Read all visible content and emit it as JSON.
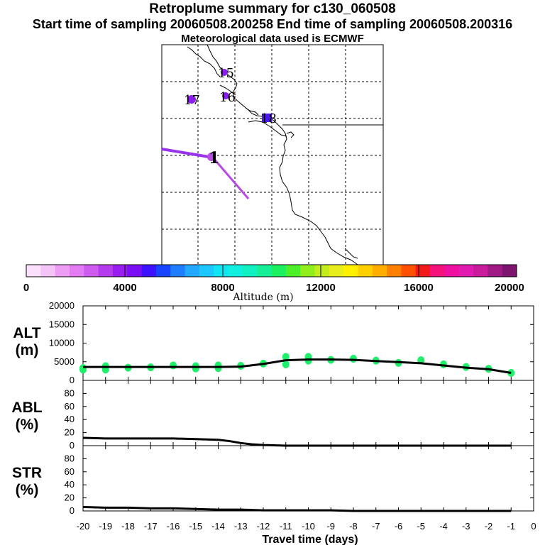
{
  "header": {
    "title": "Retroplume summary for c130_060508",
    "subtitle": "Start time of sampling 20060508.200258     End time of sampling 20060508.200316",
    "met": "Meteorological data used is ECMWF"
  },
  "map": {
    "labels": [
      "15",
      "16",
      "17",
      "18",
      "1"
    ],
    "colors": {
      "trajectory": "#9a33ee",
      "cluster": "#8a1cf0"
    }
  },
  "colorbar": {
    "title": "Altitude (m)",
    "min": 0,
    "max": 20000,
    "tick_labels": [
      "0",
      "4000",
      "8000",
      "12000",
      "16000",
      "20000"
    ],
    "colors": [
      "#fbe0fb",
      "#f5c4f7",
      "#ee9df5",
      "#e37cf2",
      "#cf5cef",
      "#b53cee",
      "#9a1ef2",
      "#7a0ff5",
      "#3c12ff",
      "#1744ff",
      "#1f7eff",
      "#22a8ff",
      "#1cc8ff",
      "#10e6f2",
      "#10efe0",
      "#10f0c0",
      "#15ef98",
      "#1cf060",
      "#4cf02a",
      "#90ee1c",
      "#c2ec1c",
      "#e8ee1c",
      "#fff000",
      "#ffd000",
      "#ffae00",
      "#ff8000",
      "#ff5000",
      "#f41a1a",
      "#f5127a",
      "#ee10a0",
      "#e01cb0",
      "#c81c9c",
      "#a01a86",
      "#7d1470"
    ]
  },
  "chart_data": [
    {
      "type": "scatter",
      "name": "ALT",
      "panel_label": [
        "ALT",
        "(m)"
      ],
      "ylim": [
        0,
        20000
      ],
      "yticks": [
        0,
        5000,
        10000,
        15000,
        20000
      ],
      "xlim": [
        -20,
        0
      ],
      "points": [
        [
          -20,
          3300
        ],
        [
          -20,
          2900
        ],
        [
          -19,
          3800
        ],
        [
          -19,
          2900
        ],
        [
          -18,
          3400
        ],
        [
          -17,
          3500
        ],
        [
          -16,
          4000
        ],
        [
          -15,
          3800
        ],
        [
          -15,
          3200
        ],
        [
          -14,
          4000
        ],
        [
          -14,
          3300
        ],
        [
          -13,
          3900
        ],
        [
          -12,
          4500
        ],
        [
          -11,
          6300
        ],
        [
          -11,
          4300
        ],
        [
          -10,
          6300
        ],
        [
          -10,
          5300
        ],
        [
          -9,
          5500
        ],
        [
          -8,
          5800
        ],
        [
          -7,
          5300
        ],
        [
          -6,
          4700
        ],
        [
          -5,
          5400
        ],
        [
          -4,
          4300
        ],
        [
          -3,
          3600
        ],
        [
          -2,
          3100
        ],
        [
          -1,
          2000
        ]
      ],
      "median_x": [
        -20,
        -19,
        -18,
        -17,
        -16,
        -15,
        -14,
        -13,
        -12,
        -11,
        -10,
        -9,
        -8,
        -7,
        -6,
        -5,
        -4,
        -3,
        -2,
        -1
      ],
      "median_y": [
        3600,
        3600,
        3600,
        3600,
        3600,
        3600,
        3600,
        3700,
        4400,
        5400,
        5600,
        5600,
        5500,
        5200,
        4900,
        4600,
        4000,
        3400,
        3000,
        2000
      ],
      "point_color": "#1ff06a"
    },
    {
      "type": "line",
      "name": "ABL",
      "panel_label": [
        "ABL",
        "(%)"
      ],
      "ylim": [
        0,
        100
      ],
      "yticks": [
        0,
        20,
        40,
        60,
        80
      ],
      "x": [
        -20,
        -19,
        -18,
        -17,
        -16,
        -15,
        -14,
        -13.5,
        -13,
        -12.5,
        -12,
        -11,
        -10,
        -9,
        -8,
        -7,
        -6,
        -5,
        -4,
        -3,
        -2,
        -1
      ],
      "y": [
        12,
        11,
        11,
        11,
        11,
        10,
        9,
        7,
        4,
        2,
        1,
        0,
        0,
        0,
        0,
        0,
        0,
        0,
        0,
        0,
        0,
        0
      ]
    },
    {
      "type": "line",
      "name": "STR",
      "panel_label": [
        "STR",
        "(%)"
      ],
      "ylim": [
        0,
        100
      ],
      "yticks": [
        0,
        20,
        40,
        60,
        80
      ],
      "x": [
        -20,
        -19,
        -18,
        -17,
        -16,
        -15,
        -14,
        -13,
        -12,
        -11,
        -10,
        -9,
        -8,
        -7,
        -6,
        -5,
        -4,
        -3,
        -2,
        -1
      ],
      "y": [
        6,
        5,
        5,
        4,
        4,
        3,
        2,
        2,
        1,
        1,
        1,
        1,
        0,
        0,
        0,
        0,
        0,
        0,
        0,
        0
      ]
    }
  ],
  "xaxis": {
    "label": "Travel time (days)",
    "tick_labels": [
      "-20",
      "-19",
      "-18",
      "-17",
      "-16",
      "-15",
      "-14",
      "-13",
      "-12",
      "-11",
      "-10",
      "-9",
      "-8",
      "-7",
      "-6",
      "-5",
      "-4",
      "-3",
      "-2",
      "-1",
      "0"
    ]
  }
}
